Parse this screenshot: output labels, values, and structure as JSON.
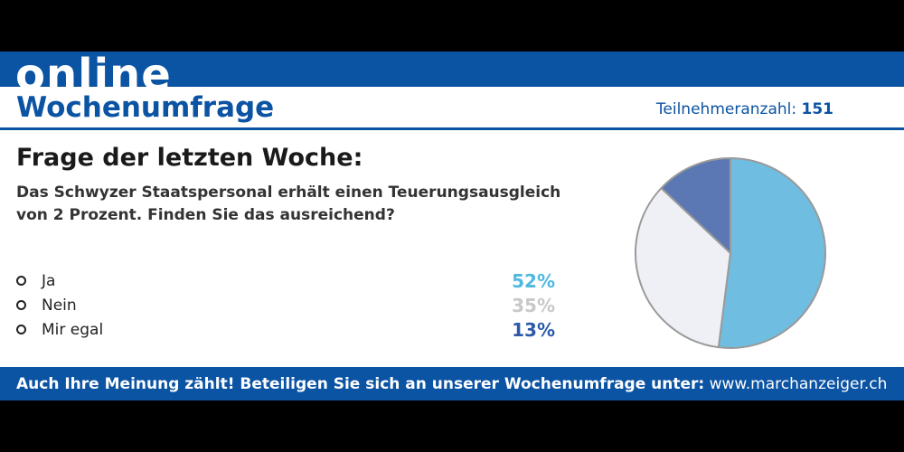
{
  "header": {
    "brand": "online",
    "title": "Wochenumfrage",
    "participants_label": "Teilnehmeranzahl:",
    "participants_count": "151"
  },
  "question": {
    "heading": "Frage der letzten Woche:",
    "line1": "Das Schwyzer Staatspersonal erhält einen Teuerungsausgleich",
    "line2": "von 2 Prozent. Finden Sie das ausreichend?"
  },
  "options": [
    {
      "label": "Ja",
      "percent": "52%",
      "color": "#4fb8e0"
    },
    {
      "label": "Nein",
      "percent": "35%",
      "color": "#c8c8c8"
    },
    {
      "label": "Mir egal",
      "percent": "13%",
      "color": "#2d5aa8"
    }
  ],
  "footer": {
    "cta": "Auch Ihre Meinung zählt! Beteiligen Sie sich an unserer Wochenumfrage unter:",
    "url": "www.marchanzeiger.ch"
  },
  "chart_data": {
    "type": "pie",
    "categories": [
      "Ja",
      "Nein",
      "Mir egal"
    ],
    "values": [
      52,
      35,
      13
    ],
    "colors": [
      "#6fbde0",
      "#eef0f5",
      "#5b78b4"
    ],
    "edge_color": "#9a9a9a"
  }
}
